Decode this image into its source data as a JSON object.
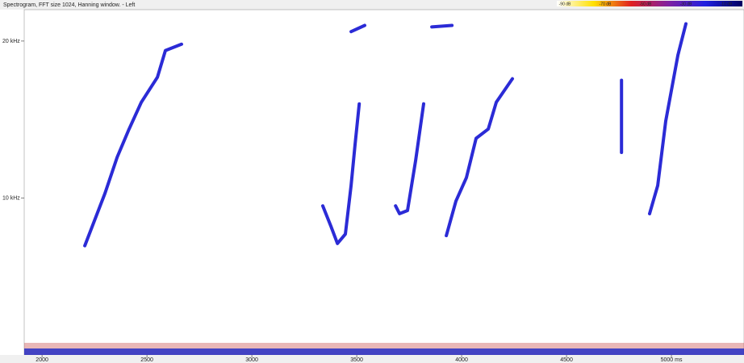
{
  "chart_data": {
    "type": "spectrogram",
    "title": "Spectrogram, FFT size 1024, Hanning window. - Left",
    "xlim": [
      1915,
      5346
    ],
    "ylim": [
      0,
      22
    ],
    "xticks": [
      2000,
      2500,
      3000,
      3500,
      4000,
      4500,
      {
        "value": 5000,
        "label": "5000 ms"
      }
    ],
    "yticks": [
      {
        "value": 10,
        "label": "10 kHz"
      },
      {
        "value": 20,
        "label": "20 kHz"
      }
    ],
    "colorbar": {
      "labels": [
        "-90 dB",
        "-70 dB",
        "-50 dB",
        "-30 dB",
        "-10 dB"
      ],
      "colors": [
        "#ffffff",
        "#ffe000",
        "#e02020",
        "#8020a0",
        "#2020e0",
        "#000060"
      ]
    },
    "series": [
      {
        "color": "#2b2bd6",
        "x": [
          2204,
          2300,
          2358,
          2415,
          2473,
          2550,
          2588,
          2665
        ],
        "values": [
          6.96,
          10.3,
          12.6,
          14.4,
          16.1,
          17.7,
          19.4,
          19.8
        ]
      },
      {
        "color": "#2b2bd6",
        "x": [
          3338,
          3377,
          3408,
          3446,
          3473,
          3492,
          3512
        ],
        "values": [
          9.5,
          8.2,
          7.1,
          7.7,
          10.8,
          13.4,
          16.0
        ]
      },
      {
        "color": "#2b2bd6",
        "x": [
          3473,
          3538
        ],
        "values": [
          20.6,
          21.0
        ]
      },
      {
        "color": "#2b2bd6",
        "x": [
          3685,
          3704,
          3742,
          3781,
          3819
        ],
        "values": [
          9.5,
          9.0,
          9.2,
          12.4,
          16.0
        ]
      },
      {
        "color": "#2b2bd6",
        "x": [
          3858,
          3954
        ],
        "values": [
          20.9,
          21.0
        ]
      },
      {
        "color": "#2b2bd6",
        "x": [
          3927,
          3973,
          4023,
          4069,
          4127,
          4165,
          4242
        ],
        "values": [
          7.6,
          9.8,
          11.3,
          13.8,
          14.4,
          16.1,
          17.6
        ]
      },
      {
        "color": "#2b2bd6",
        "x": [
          4762,
          4762
        ],
        "values": [
          12.9,
          17.5
        ]
      },
      {
        "color": "#2b2bd6",
        "x": [
          4896,
          4935,
          4973,
          5031,
          5069
        ],
        "values": [
          9.0,
          10.8,
          14.9,
          19.1,
          21.1
        ]
      }
    ]
  }
}
